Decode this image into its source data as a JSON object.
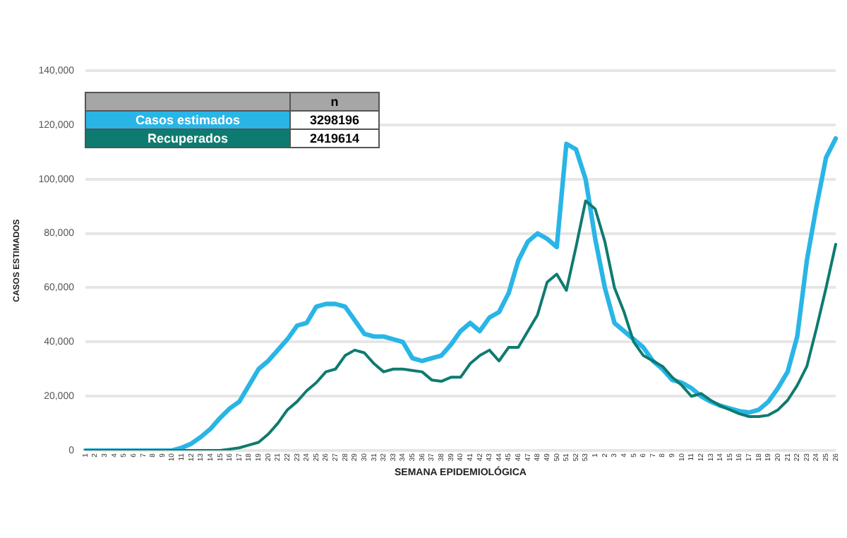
{
  "chart_data": {
    "type": "line",
    "xlabel": "SEMANA EPIDEMIOLÓGICA",
    "ylabel": "CASOS ESTIMADOS",
    "categories": [
      "1",
      "2",
      "3",
      "4",
      "5",
      "6",
      "7",
      "8",
      "9",
      "10",
      "11",
      "12",
      "13",
      "14",
      "15",
      "16",
      "17",
      "18",
      "19",
      "20",
      "21",
      "22",
      "23",
      "24",
      "25",
      "26",
      "27",
      "28",
      "29",
      "30",
      "31",
      "32",
      "33",
      "34",
      "35",
      "36",
      "37",
      "38",
      "39",
      "40",
      "41",
      "42",
      "43",
      "44",
      "45",
      "46",
      "47",
      "48",
      "49",
      "50",
      "51",
      "52",
      "53",
      "1",
      "2",
      "3",
      "4",
      "5",
      "6",
      "7",
      "8",
      "9",
      "10",
      "11",
      "12",
      "13",
      "14",
      "15",
      "16",
      "17",
      "18",
      "19",
      "20",
      "21",
      "22",
      "23",
      "24",
      "25",
      "26"
    ],
    "series": [
      {
        "name": "Casos estimados",
        "color": "#29b5e6",
        "values": [
          0,
          0,
          0,
          0,
          0,
          0,
          0,
          0,
          0,
          0,
          1000,
          2500,
          5000,
          8000,
          12000,
          15500,
          18000,
          24000,
          30000,
          33000,
          37000,
          41000,
          46000,
          47000,
          53000,
          54000,
          54000,
          53000,
          48000,
          43000,
          42000,
          42000,
          41000,
          40000,
          34000,
          33000,
          34000,
          35000,
          39000,
          44000,
          47000,
          44000,
          49000,
          51000,
          58000,
          70000,
          77000,
          80000,
          78000,
          75000,
          113000,
          111000,
          100000,
          78000,
          60000,
          47000,
          44000,
          41000,
          38000,
          33000,
          30000,
          26000,
          25000,
          23000,
          20000,
          18000,
          16500,
          15500,
          14500,
          14000,
          15000,
          18000,
          23000,
          29000,
          42000,
          70000,
          90000,
          108000,
          115000
        ]
      },
      {
        "name": "Recuperados",
        "color": "#0e7b70",
        "values": [
          0,
          0,
          0,
          0,
          0,
          0,
          0,
          0,
          0,
          0,
          0,
          0,
          0,
          0,
          0,
          500,
          1000,
          2000,
          3000,
          6000,
          10000,
          15000,
          18000,
          22000,
          25000,
          29000,
          30000,
          35000,
          37000,
          36000,
          32000,
          29000,
          30000,
          30000,
          29500,
          29000,
          26000,
          25500,
          27000,
          27000,
          32000,
          35000,
          37000,
          33000,
          38000,
          38000,
          44000,
          50000,
          62000,
          65000,
          59000,
          75000,
          92000,
          89000,
          77000,
          60000,
          51000,
          40000,
          35000,
          33000,
          31000,
          27000,
          24000,
          20000,
          21000,
          18500,
          16500,
          15000,
          13500,
          12500,
          12500,
          13000,
          15000,
          18500,
          24000,
          31000,
          45000,
          60000,
          76000
        ]
      }
    ],
    "annotations": [
      "n",
      "3298196",
      "2419614"
    ],
    "ylim": [
      0,
      140000
    ],
    "yticks": [
      {
        "value": 0,
        "label": "0"
      },
      {
        "value": 20000,
        "label": "20,000"
      },
      {
        "value": 40000,
        "label": "40,000"
      },
      {
        "value": 60000,
        "label": "60,000"
      },
      {
        "value": 80000,
        "label": "80,000"
      },
      {
        "value": 100000,
        "label": "100,000"
      },
      {
        "value": 120000,
        "label": "120,000"
      },
      {
        "value": 140000,
        "label": "140,000"
      }
    ],
    "grid": "y",
    "legend": "top left",
    "marker": "none",
    "line_style": "solid"
  }
}
